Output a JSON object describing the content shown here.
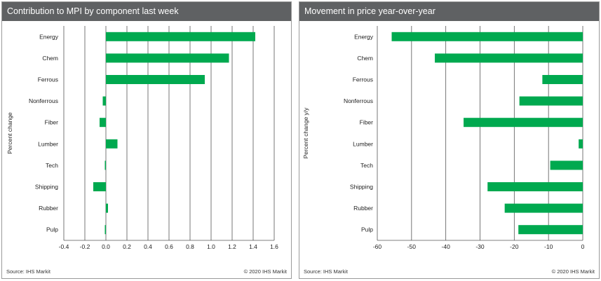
{
  "panels": [
    {
      "title": "Contribution  to MPI by component last week",
      "source": "Source:  IHS Markit",
      "copyright": "© 2020  IHS Markit"
    },
    {
      "title": "Movement in price year-over-year",
      "source": "Source:  IHS Markit",
      "copyright": "© 2020  IHS Markit"
    }
  ],
  "colors": {
    "bar": "#00a94f",
    "grid": "#555555",
    "header": "#5f6163"
  },
  "chart_data": [
    {
      "type": "bar",
      "orientation": "horizontal",
      "title": "Contribution  to MPI by component last week",
      "ylabel": "Percent change",
      "categories": [
        "Energy",
        "Chem",
        "Ferrous",
        "Nonferrous",
        "Fiber",
        "Lumber",
        "Tech",
        "Shipping",
        "Rubber",
        "Pulp"
      ],
      "values": [
        1.42,
        1.17,
        0.94,
        -0.03,
        -0.06,
        0.11,
        -0.01,
        -0.12,
        0.02,
        -0.01
      ],
      "xlim": [
        -0.4,
        1.6
      ],
      "xticks": [
        -0.4,
        -0.2,
        0.0,
        0.2,
        0.4,
        0.6,
        0.8,
        1.0,
        1.2,
        1.4,
        1.6
      ],
      "xtick_labels": [
        "-0.4",
        "-0.2",
        "0.0",
        "0.2",
        "0.4",
        "0.6",
        "0.8",
        "1.0",
        "1.2",
        "1.4",
        "1.6"
      ],
      "grid": "vertical"
    },
    {
      "type": "bar",
      "orientation": "horizontal",
      "title": "Movement in price year-over-year",
      "ylabel": "Percent change y/y",
      "categories": [
        "Energy",
        "Chem",
        "Ferrous",
        "Nonferrous",
        "Fiber",
        "Lumber",
        "Tech",
        "Shipping",
        "Rubber",
        "Pulp"
      ],
      "values": [
        -55.8,
        -43.2,
        -11.8,
        -18.5,
        -34.8,
        -1.2,
        -9.5,
        -27.8,
        -22.8,
        -18.8
      ],
      "xlim": [
        -60,
        0
      ],
      "xticks": [
        -60,
        -50,
        -40,
        -30,
        -20,
        -10,
        0
      ],
      "xtick_labels": [
        "-60",
        "-50",
        "-40",
        "-30",
        "-20",
        "-10",
        "0"
      ],
      "grid": "vertical"
    }
  ]
}
